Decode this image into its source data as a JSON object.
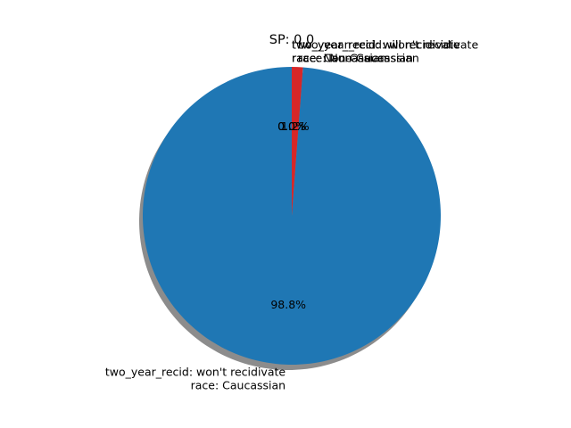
{
  "chart_data": {
    "type": "pie",
    "title": "SP: 0.0",
    "shadow": true,
    "start_angle_deg": 90,
    "slices": [
      {
        "label_lines": [
          "two_year_recid: won't recidivate",
          "race: Caucassian"
        ],
        "value": 98.8,
        "pct_label": "98.8%",
        "color": "#1f77b4"
      },
      {
        "label_lines": [
          "two_year_recid: won't recidivate",
          "race: Non-Caucassian"
        ],
        "value": 1.2,
        "pct_label": "1.2%",
        "color": "#d62728"
      },
      {
        "label_lines": [
          "two_year_recid: will recidivate",
          "race: Caucassian"
        ],
        "value": 0.0,
        "pct_label": "0.0%",
        "color": "#ff7f0e"
      },
      {
        "label_lines": [
          "two_year_recid: will recidivate",
          "race: Non-Caucassian"
        ],
        "value": 0.0,
        "pct_label": "0.0%",
        "color": "#2ca02c"
      }
    ]
  }
}
